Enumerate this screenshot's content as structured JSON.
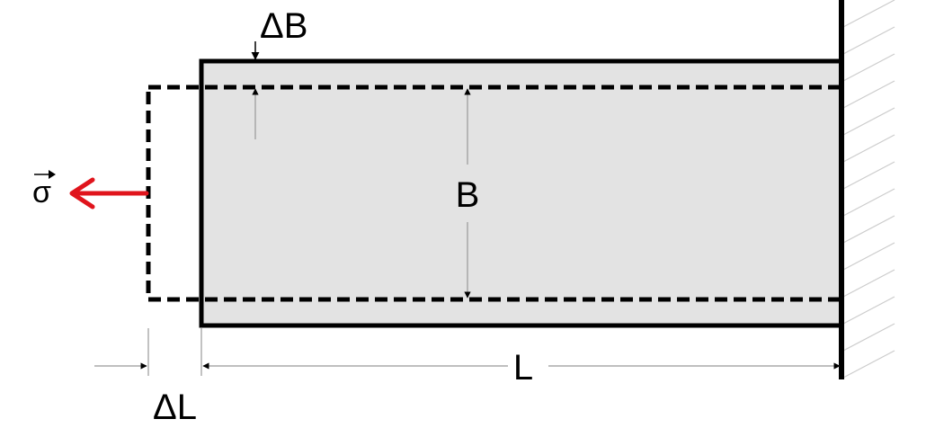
{
  "diagram": {
    "labels": {
      "delta_b": "ΔB",
      "b": "B",
      "l": "L",
      "delta_l": "ΔL",
      "sigma": "σ"
    },
    "colors": {
      "body_fill": "#e3e3e3",
      "outline": "#000000",
      "force_arrow": "#e0141c",
      "dimension_line": "#999999",
      "wall_hatch": "#cccccc"
    }
  }
}
